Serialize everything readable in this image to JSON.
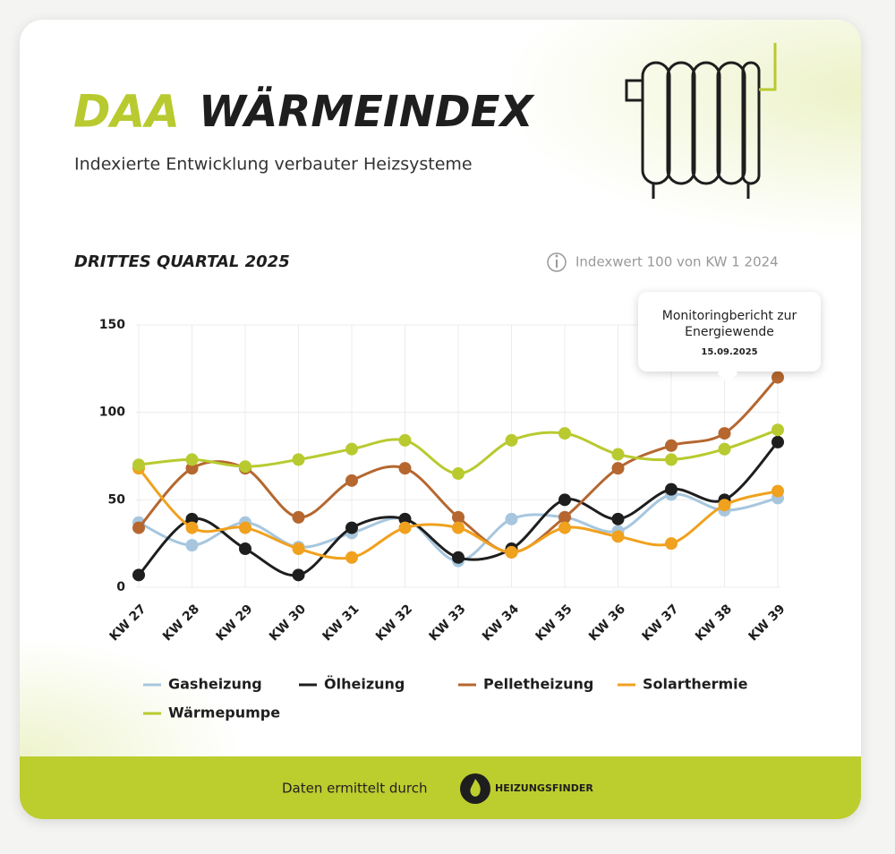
{
  "header": {
    "logo": "DAA",
    "title": "WÄRMEINDEX",
    "subtitle": "Indexierte Entwicklung verbauter Heizsysteme"
  },
  "chart_data": {
    "type": "line",
    "title": "DRITTES QUARTAL 2025",
    "note": "Indexwert 100 von KW 1 2024",
    "annotation": {
      "text": "Monitoringbericht zur Energiewende",
      "date": "15.09.2025"
    },
    "categories": [
      "KW 27",
      "KW 28",
      "KW 29",
      "KW 30",
      "KW 31",
      "KW 32",
      "KW 33",
      "KW 34",
      "KW 35",
      "KW 36",
      "KW 37",
      "KW 38",
      "KW 39"
    ],
    "ylim": [
      0,
      150
    ],
    "yticks": [
      0,
      50,
      100,
      150
    ],
    "grid": true,
    "series": [
      {
        "name": "Gasheizung",
        "color": "#a7c6de",
        "values": [
          37,
          24,
          37,
          23,
          31,
          39,
          15,
          39,
          40,
          32,
          53,
          44,
          51
        ]
      },
      {
        "name": "Ölheizung",
        "color": "#1e1e1e",
        "values": [
          7,
          39,
          22,
          7,
          34,
          39,
          17,
          22,
          50,
          39,
          56,
          50,
          83
        ]
      },
      {
        "name": "Pelletheizung",
        "color": "#b5672f",
        "values": [
          34,
          68,
          68,
          40,
          61,
          68,
          40,
          20,
          40,
          68,
          81,
          88,
          120
        ]
      },
      {
        "name": "Solarthermie",
        "color": "#f0a11e",
        "values": [
          68,
          34,
          34,
          22,
          17,
          34,
          34,
          20,
          34,
          29,
          25,
          47,
          55
        ]
      },
      {
        "name": "Wärmepumpe",
        "color": "#b8ca2f",
        "values": [
          70,
          73,
          69,
          73,
          79,
          84,
          65,
          84,
          88,
          76,
          73,
          79,
          90
        ]
      }
    ]
  },
  "footer": {
    "text": "Daten ermittelt durch",
    "brand": "HEIZUNGSFINDER"
  }
}
